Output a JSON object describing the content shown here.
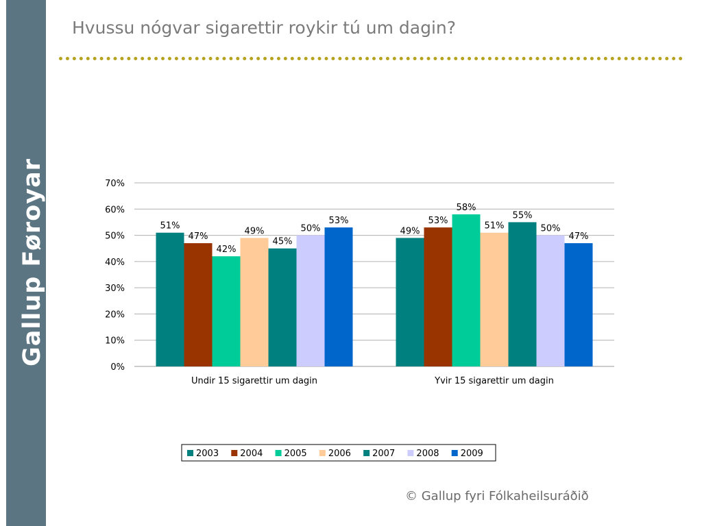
{
  "brand": "Gallup Føroyar",
  "title": "Hvussu nógvar sigarettir roykir tú um dagin?",
  "credit": "© Gallup fyri Fólkaheilsuráðið",
  "chart_data": {
    "type": "bar",
    "title": "",
    "xlabel": "",
    "ylabel": "",
    "categories": [
      "Undir 15 sigarettir um dagin",
      "Yvir 15 sigarettir um dagin"
    ],
    "ylim": [
      0,
      70
    ],
    "yticks": [
      0,
      10,
      20,
      30,
      40,
      50,
      60,
      70
    ],
    "y_unit": "%",
    "grid": true,
    "legend": "bottom",
    "series": [
      {
        "name": "2003",
        "values": [
          51,
          49
        ],
        "color": "#00807f"
      },
      {
        "name": "2004",
        "values": [
          47,
          53
        ],
        "color": "#993300"
      },
      {
        "name": "2005",
        "values": [
          42,
          58
        ],
        "color": "#00cc99"
      },
      {
        "name": "2006",
        "values": [
          49,
          51
        ],
        "color": "#ffcc99"
      },
      {
        "name": "2007",
        "values": [
          45,
          55
        ],
        "color": "#00807f"
      },
      {
        "name": "2008",
        "values": [
          50,
          50
        ],
        "color": "#ccccff"
      },
      {
        "name": "2009",
        "values": [
          53,
          47
        ],
        "color": "#0066cc"
      }
    ]
  }
}
